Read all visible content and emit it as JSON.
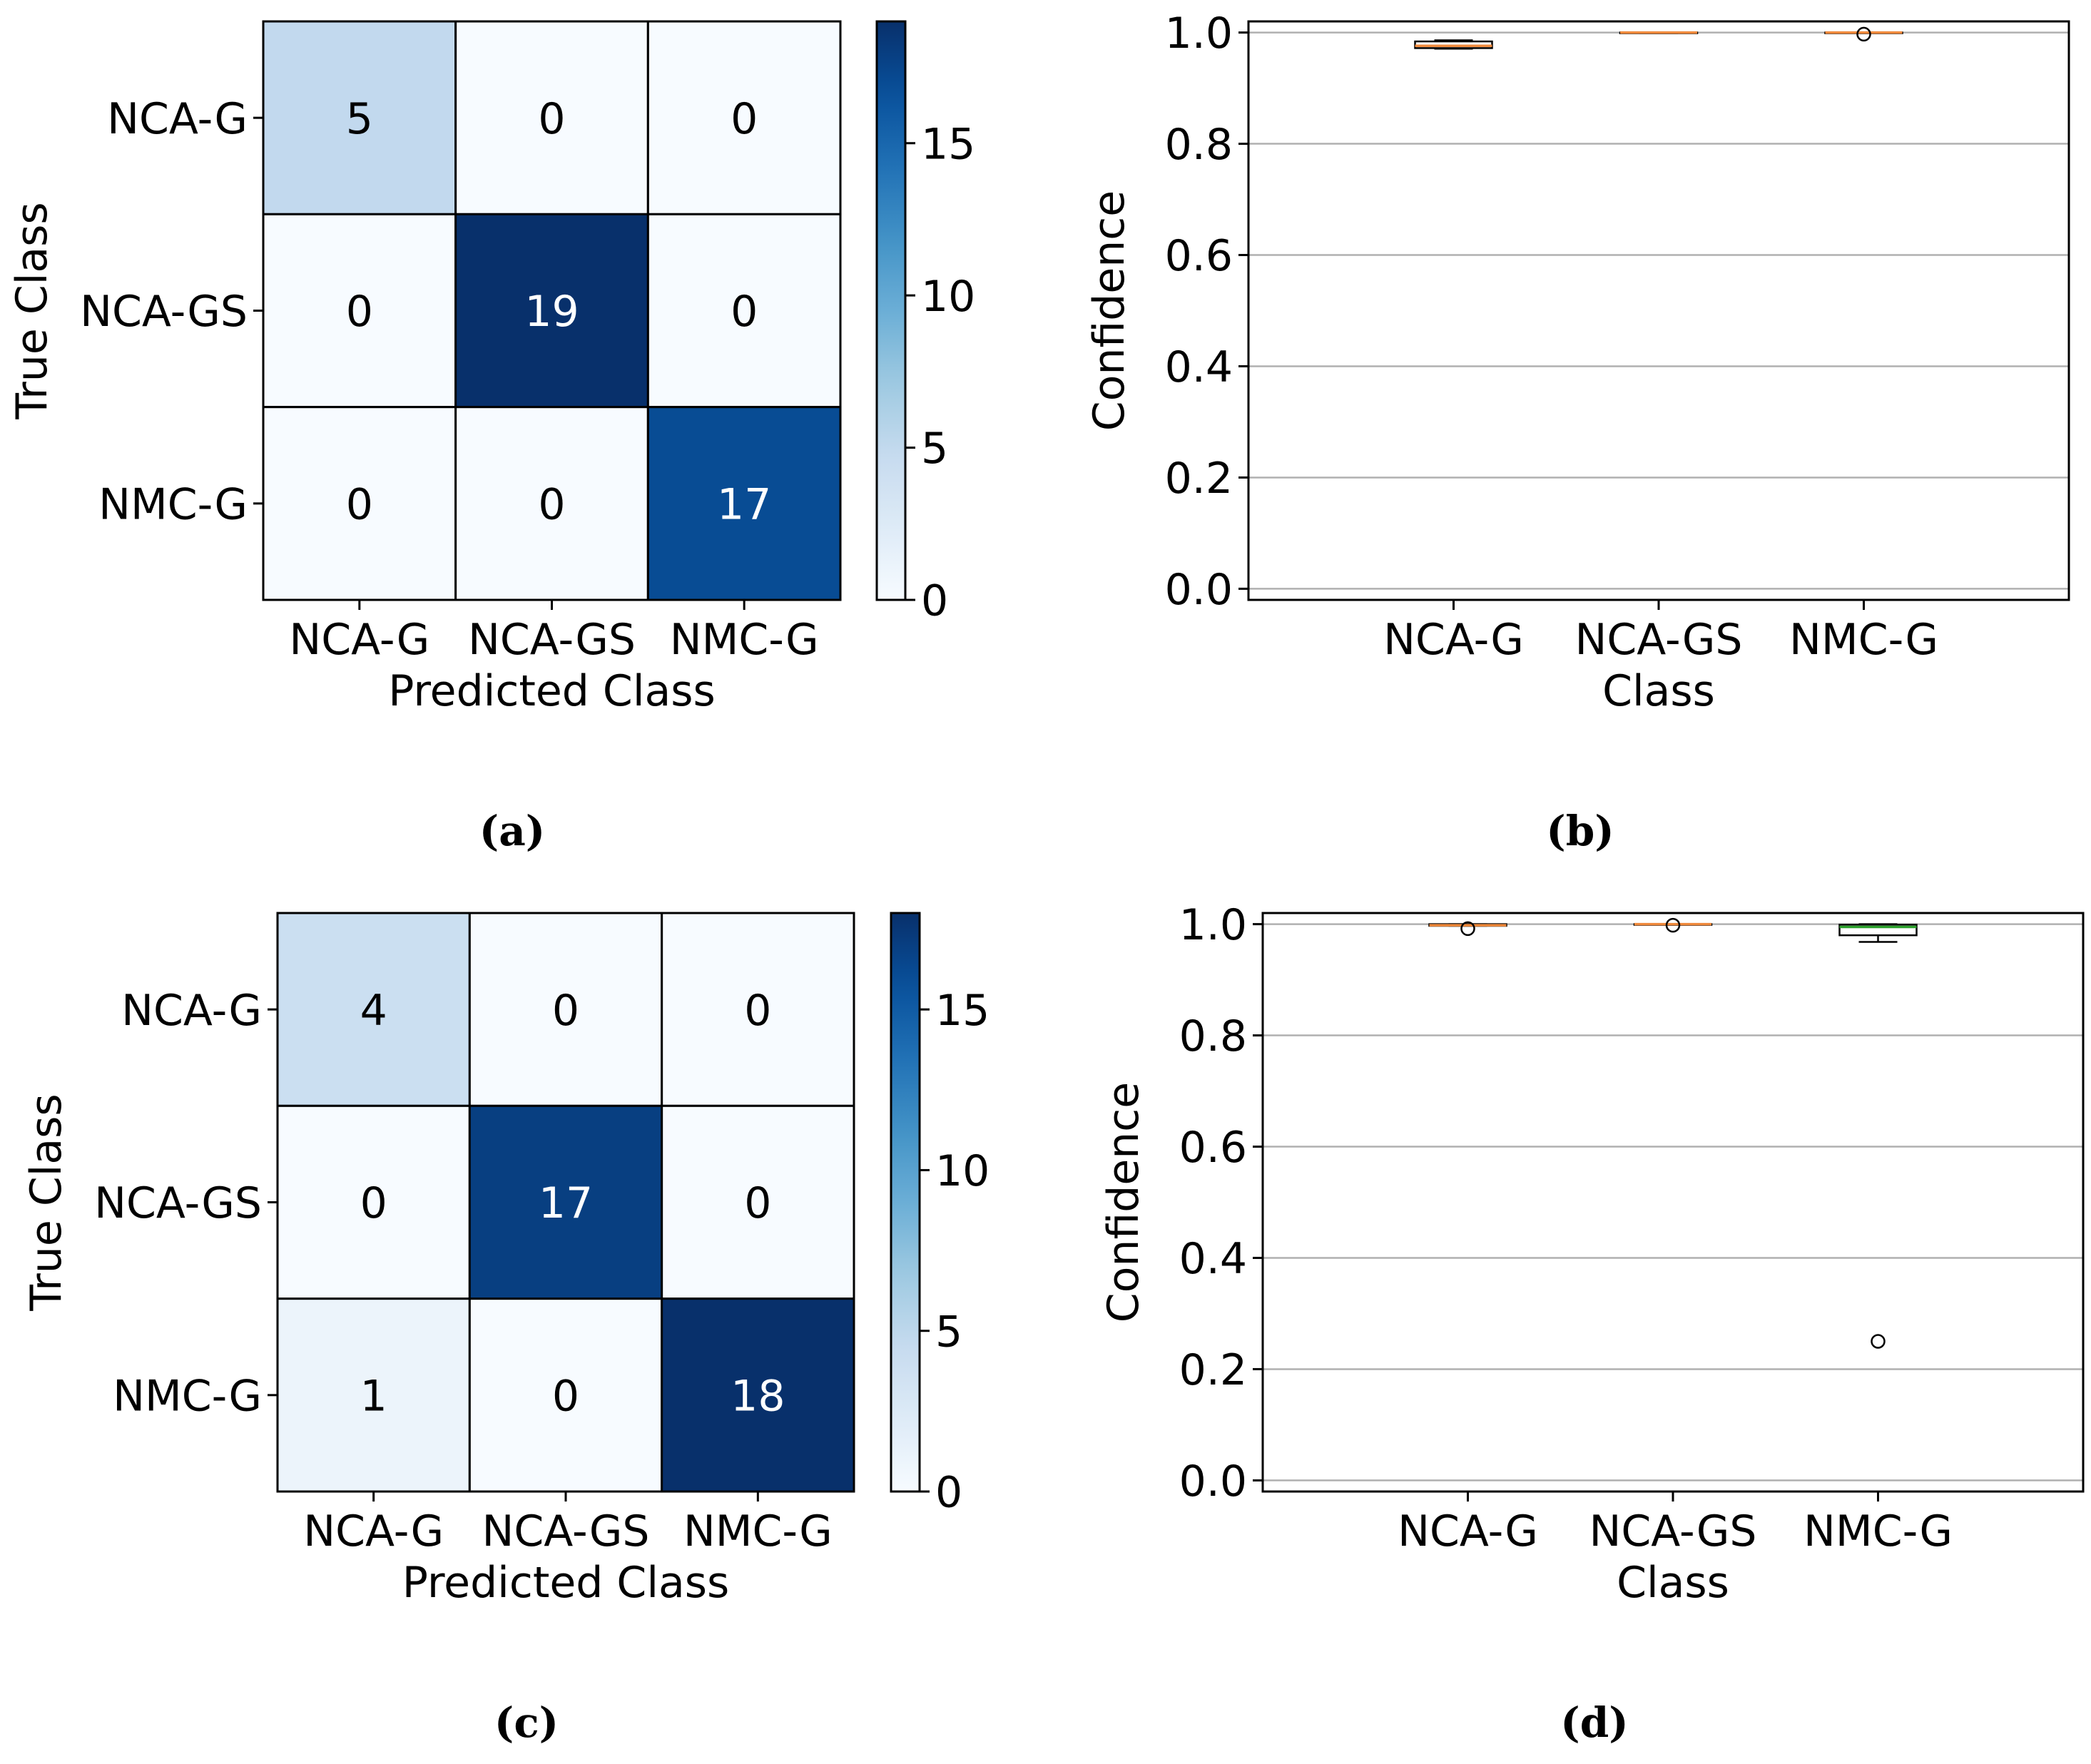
{
  "chart_data": [
    {
      "id": "a",
      "type": "heatmap",
      "caption": "(a)",
      "xlabel": "Predicted Class",
      "ylabel": "True Class",
      "x_categories": [
        "NCA-G",
        "NCA-GS",
        "NMC-G"
      ],
      "y_categories": [
        "NCA-G",
        "NCA-GS",
        "NMC-G"
      ],
      "matrix": [
        [
          5,
          0,
          0
        ],
        [
          0,
          19,
          0
        ],
        [
          0,
          0,
          17
        ]
      ],
      "cell_labels": [
        [
          "5",
          "0",
          "0"
        ],
        [
          "0",
          "19",
          "0"
        ],
        [
          "0",
          "0",
          "17"
        ]
      ],
      "colorbar": {
        "min": 0,
        "max": 19,
        "ticks": [
          0,
          5,
          10,
          15
        ],
        "tick_labels": [
          "0",
          "5",
          "10",
          "15"
        ],
        "colormap": "Blues"
      }
    },
    {
      "id": "b",
      "type": "box",
      "caption": "(b)",
      "xlabel": "Class",
      "ylabel": "Confidence",
      "categories": [
        "NCA-G",
        "NCA-GS",
        "NMC-G"
      ],
      "ylim": [
        -0.02,
        1.02
      ],
      "yticks": [
        0.0,
        0.2,
        0.4,
        0.6,
        0.8,
        1.0
      ],
      "ytick_labels": [
        "0.0",
        "0.2",
        "0.4",
        "0.6",
        "0.8",
        "1.0"
      ],
      "grid": "y",
      "boxes": [
        {
          "category": "NCA-G",
          "whisker_low": 0.971,
          "q1": 0.972,
          "median": 0.976,
          "q3": 0.984,
          "whisker_high": 0.986,
          "outliers": [],
          "color": "#f08a3c"
        },
        {
          "category": "NCA-GS",
          "whisker_low": 0.999,
          "q1": 0.999,
          "median": 1.0,
          "q3": 1.0,
          "whisker_high": 1.0,
          "outliers": [],
          "color": "#f08a3c"
        },
        {
          "category": "NMC-G",
          "whisker_low": 1.0,
          "q1": 1.0,
          "median": 1.0,
          "q3": 1.0,
          "whisker_high": 1.0,
          "outliers": [
            0.997
          ],
          "color": "#f08a3c"
        }
      ]
    },
    {
      "id": "c",
      "type": "heatmap",
      "caption": "(c)",
      "xlabel": "Predicted Class",
      "ylabel": "True Class",
      "x_categories": [
        "NCA-G",
        "NCA-GS",
        "NMC-G"
      ],
      "y_categories": [
        "NCA-G",
        "NCA-GS",
        "NMC-G"
      ],
      "matrix": [
        [
          4,
          0,
          0
        ],
        [
          0,
          17,
          0
        ],
        [
          1,
          0,
          18
        ]
      ],
      "cell_labels": [
        [
          "4",
          "0",
          "0"
        ],
        [
          "0",
          "17",
          "0"
        ],
        [
          "1",
          "0",
          "18"
        ]
      ],
      "colorbar": {
        "min": 0,
        "max": 18,
        "ticks": [
          0,
          5,
          10,
          15
        ],
        "tick_labels": [
          "0",
          "5",
          "10",
          "15"
        ],
        "colormap": "Blues"
      }
    },
    {
      "id": "d",
      "type": "box",
      "caption": "(d)",
      "xlabel": "Class",
      "ylabel": "Confidence",
      "categories": [
        "NCA-G",
        "NCA-GS",
        "NMC-G"
      ],
      "ylim": [
        -0.02,
        1.02
      ],
      "yticks": [
        0.0,
        0.2,
        0.4,
        0.6,
        0.8,
        1.0
      ],
      "ytick_labels": [
        "0.0",
        "0.2",
        "0.4",
        "0.6",
        "0.8",
        "1.0"
      ],
      "grid": "y",
      "boxes": [
        {
          "category": "NCA-G",
          "whisker_low": 0.997,
          "q1": 0.997,
          "median": 0.998,
          "q3": 1.0,
          "whisker_high": 1.0,
          "outliers": [
            0.992
          ],
          "color": "#f08a3c"
        },
        {
          "category": "NCA-GS",
          "whisker_low": 1.0,
          "q1": 1.0,
          "median": 1.0,
          "q3": 1.0,
          "whisker_high": 1.0,
          "outliers": [
            0.998
          ],
          "color": "#f08a3c"
        },
        {
          "category": "NMC-G",
          "whisker_low": 0.968,
          "q1": 0.98,
          "median": 0.995,
          "q3": 0.999,
          "whisker_high": 1.0,
          "outliers": [
            0.25
          ],
          "color": "#2ca02c"
        }
      ]
    }
  ]
}
